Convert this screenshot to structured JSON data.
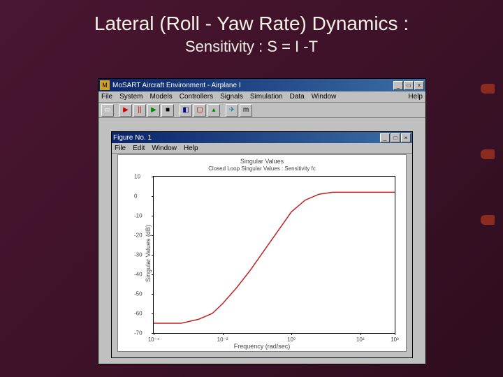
{
  "slide": {
    "title": "Lateral (Roll - Yaw Rate) Dynamics :",
    "subtitle": "Sensitivity : S = I -T",
    "title_color": "#f5f0e8",
    "background": "#4a1530"
  },
  "outer_window": {
    "title": "MoSART Aircraft Environment - Airplane I",
    "icon_label": "M",
    "menu": [
      "File",
      "System",
      "Models",
      "Controllers",
      "Signals",
      "Simulation",
      "Data",
      "Window"
    ],
    "menu_right": "Help",
    "toolbar_icons": [
      "file",
      "sep",
      "play-red",
      "pause",
      "play-green",
      "stop",
      "sep",
      "screen",
      "chart-red",
      "chart-green",
      "sep",
      "airplane",
      "m-letter"
    ]
  },
  "inner_window": {
    "title": "Figure No. 1",
    "menu": [
      "File",
      "Edit",
      "Window",
      "Help"
    ]
  },
  "chart": {
    "type": "line",
    "title": "Singular Values",
    "subtitle": "Closed Loop Singular Values : Sensitivity fc",
    "ylabel": "Singular Values (dB)",
    "xlabel": "Frequency (rad/sec)",
    "line_color": "#c02020",
    "line_width": 1.5,
    "background_color": "#ffffff",
    "axis_color": "#000000",
    "text_color": "#444444",
    "ylim": [
      -70,
      10
    ],
    "ytick_step": 10,
    "yticks": [
      10,
      0,
      -10,
      -20,
      -30,
      -40,
      -50,
      -60,
      -70
    ],
    "xscale": "log",
    "xlim_exp": [
      -4,
      3
    ],
    "xticks_exp": [
      -4,
      -2,
      0,
      2,
      3
    ],
    "xtick_labels": [
      "10⁻⁴",
      "10⁻²",
      "10⁰",
      "10²",
      "10³"
    ],
    "data_points": [
      {
        "x_exp": -4.0,
        "y": -65
      },
      {
        "x_exp": -3.2,
        "y": -65
      },
      {
        "x_exp": -2.7,
        "y": -63
      },
      {
        "x_exp": -2.3,
        "y": -60
      },
      {
        "x_exp": -2.0,
        "y": -55
      },
      {
        "x_exp": -1.6,
        "y": -47
      },
      {
        "x_exp": -1.2,
        "y": -38
      },
      {
        "x_exp": -0.8,
        "y": -28
      },
      {
        "x_exp": -0.4,
        "y": -18
      },
      {
        "x_exp": 0.0,
        "y": -8
      },
      {
        "x_exp": 0.4,
        "y": -2
      },
      {
        "x_exp": 0.8,
        "y": 1
      },
      {
        "x_exp": 1.2,
        "y": 2
      },
      {
        "x_exp": 1.8,
        "y": 2
      },
      {
        "x_exp": 2.5,
        "y": 2
      },
      {
        "x_exp": 3.0,
        "y": 2
      }
    ]
  },
  "win_controls": {
    "minimize": "_",
    "maximize": "□",
    "close": "×"
  }
}
